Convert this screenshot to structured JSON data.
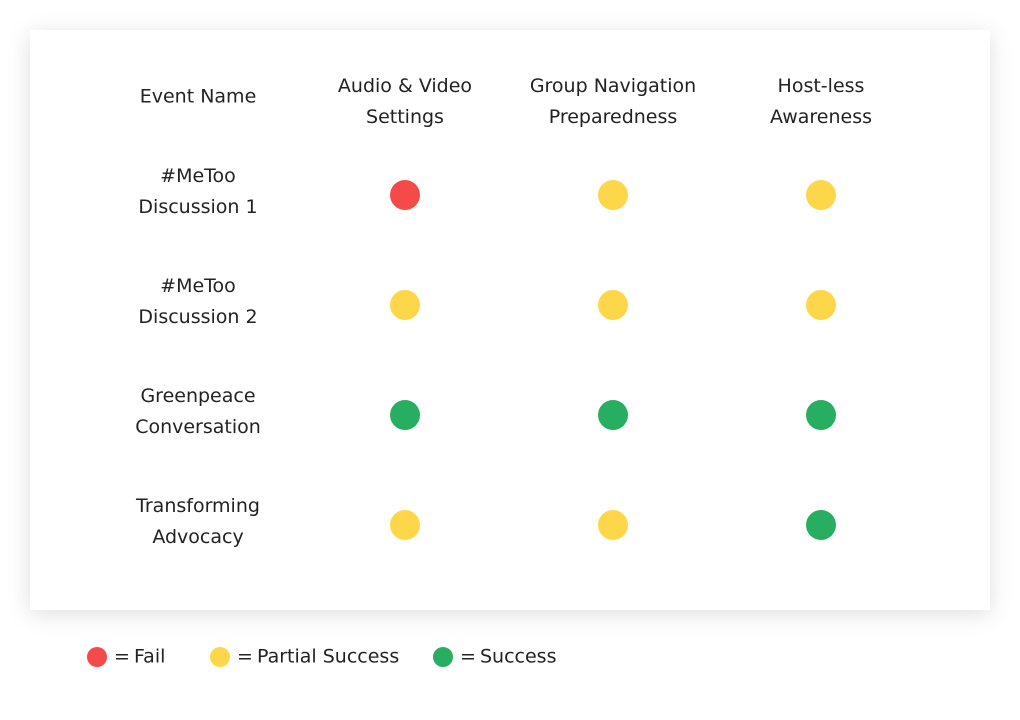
{
  "table": {
    "header": [
      [
        "Event Name"
      ],
      [
        "Audio & Video",
        "Settings"
      ],
      [
        "Group Navigation",
        "Preparedness"
      ],
      [
        "Host-less",
        "Awareness"
      ]
    ],
    "rows": [
      {
        "name": [
          "#MeToo",
          "Discussion 1"
        ],
        "cells": [
          "#f44a4a",
          "#fdd64a",
          "#fdd64a"
        ]
      },
      {
        "name": [
          "#MeToo",
          "Discussion 2"
        ],
        "cells": [
          "#fdd64a",
          "#fdd64a",
          "#fdd64a"
        ]
      },
      {
        "name": [
          "Greenpeace",
          "Conversation"
        ],
        "cells": [
          "#27ae60",
          "#27ae60",
          "#27ae60"
        ]
      },
      {
        "name": [
          "Transforming",
          "Advocacy"
        ],
        "cells": [
          "#fdd64a",
          "#fdd64a",
          "#27ae60"
        ]
      }
    ]
  },
  "legend": {
    "sign": "=",
    "items": [
      {
        "label": "Fail",
        "color": "#f44a4a"
      },
      {
        "label": "Partial Success",
        "color": "#fdd64a"
      },
      {
        "label": "Success",
        "color": "#27ae60"
      }
    ]
  }
}
